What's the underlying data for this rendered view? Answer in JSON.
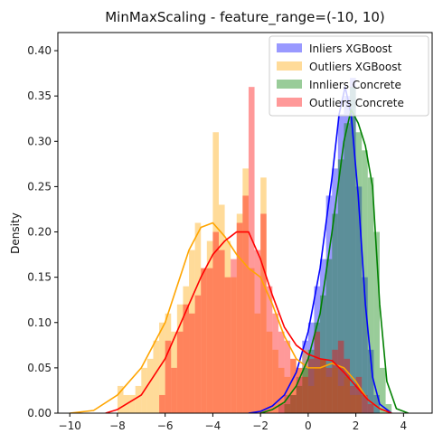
{
  "chart_data": {
    "type": "histogram",
    "title": "MinMaxScaling - feature_range=(-10, 10)",
    "xlabel": "",
    "ylabel": "Density",
    "xlim": [
      -10.5,
      5.2
    ],
    "ylim": [
      0,
      0.42
    ],
    "xticks": [
      -10,
      -8,
      -6,
      -4,
      -2,
      0,
      2,
      4
    ],
    "yticks": [
      0.0,
      0.05,
      0.1,
      0.15,
      0.2,
      0.25,
      0.3,
      0.35,
      0.4
    ],
    "ytick_labels": [
      "0.00",
      "0.05",
      "0.10",
      "0.15",
      "0.20",
      "0.25",
      "0.30",
      "0.35",
      "0.40"
    ],
    "legend_position": "top-right",
    "series": [
      {
        "name": "Inliers XGBoost",
        "hist_color": "#0000ff",
        "kde_color": "#0000ff",
        "bin_width": 0.25,
        "bins": [
          [
            -1.25,
            0.01
          ],
          [
            -1.0,
            0.02
          ],
          [
            -0.75,
            0.02
          ],
          [
            -0.5,
            0.04
          ],
          [
            -0.25,
            0.08
          ],
          [
            0.0,
            0.1
          ],
          [
            0.25,
            0.14
          ],
          [
            0.5,
            0.17
          ],
          [
            0.75,
            0.24
          ],
          [
            1.0,
            0.27
          ],
          [
            1.25,
            0.33
          ],
          [
            1.5,
            0.35
          ],
          [
            1.75,
            0.37
          ],
          [
            2.0,
            0.25
          ],
          [
            2.25,
            0.15
          ],
          [
            2.5,
            0.07
          ],
          [
            2.75,
            0.02
          ]
        ],
        "kde": [
          [
            -2.5,
            0.0
          ],
          [
            -2.0,
            0.002
          ],
          [
            -1.5,
            0.008
          ],
          [
            -1.0,
            0.02
          ],
          [
            -0.5,
            0.045
          ],
          [
            0.0,
            0.09
          ],
          [
            0.5,
            0.16
          ],
          [
            1.0,
            0.26
          ],
          [
            1.3,
            0.33
          ],
          [
            1.55,
            0.36
          ],
          [
            1.8,
            0.33
          ],
          [
            2.1,
            0.24
          ],
          [
            2.4,
            0.12
          ],
          [
            2.7,
            0.04
          ],
          [
            3.0,
            0.01
          ],
          [
            3.5,
            0.0
          ]
        ]
      },
      {
        "name": "Outliers XGBoost",
        "hist_color": "#ffa500",
        "kde_color": "#ffa500",
        "bin_width": 0.25,
        "bins": [
          [
            -8.0,
            0.03
          ],
          [
            -7.75,
            0.02
          ],
          [
            -7.5,
            0.02
          ],
          [
            -7.25,
            0.03
          ],
          [
            -7.0,
            0.05
          ],
          [
            -6.75,
            0.06
          ],
          [
            -6.5,
            0.08
          ],
          [
            -6.25,
            0.1
          ],
          [
            -6.0,
            0.11
          ],
          [
            -5.75,
            0.09
          ],
          [
            -5.5,
            0.12
          ],
          [
            -5.25,
            0.14
          ],
          [
            -5.0,
            0.18
          ],
          [
            -4.75,
            0.21
          ],
          [
            -4.5,
            0.16
          ],
          [
            -4.25,
            0.19
          ],
          [
            -4.0,
            0.31
          ],
          [
            -3.75,
            0.23
          ],
          [
            -3.5,
            0.19
          ],
          [
            -3.25,
            0.15
          ],
          [
            -3.0,
            0.22
          ],
          [
            -2.75,
            0.27
          ],
          [
            -2.5,
            0.16
          ],
          [
            -2.25,
            0.11
          ],
          [
            -2.0,
            0.26
          ],
          [
            -1.75,
            0.09
          ],
          [
            -1.5,
            0.07
          ],
          [
            -1.25,
            0.05
          ],
          [
            -1.0,
            0.04
          ],
          [
            -0.75,
            0.06
          ],
          [
            -0.5,
            0.05
          ],
          [
            -0.25,
            0.07
          ],
          [
            0.0,
            0.03
          ],
          [
            0.25,
            0.05
          ],
          [
            0.5,
            0.06
          ],
          [
            0.75,
            0.04
          ],
          [
            1.0,
            0.05
          ],
          [
            1.25,
            0.03
          ],
          [
            1.5,
            0.04
          ],
          [
            1.75,
            0.02
          ],
          [
            2.0,
            0.02
          ]
        ],
        "kde": [
          [
            -10.0,
            0.0
          ],
          [
            -9.0,
            0.003
          ],
          [
            -8.0,
            0.02
          ],
          [
            -7.0,
            0.05
          ],
          [
            -6.0,
            0.1
          ],
          [
            -5.5,
            0.14
          ],
          [
            -5.0,
            0.18
          ],
          [
            -4.5,
            0.205
          ],
          [
            -4.0,
            0.21
          ],
          [
            -3.5,
            0.195
          ],
          [
            -3.0,
            0.175
          ],
          [
            -2.5,
            0.16
          ],
          [
            -2.0,
            0.15
          ],
          [
            -1.5,
            0.12
          ],
          [
            -1.0,
            0.085
          ],
          [
            -0.5,
            0.06
          ],
          [
            0.0,
            0.05
          ],
          [
            0.5,
            0.05
          ],
          [
            1.0,
            0.055
          ],
          [
            1.5,
            0.05
          ],
          [
            2.0,
            0.035
          ],
          [
            2.5,
            0.015
          ],
          [
            3.0,
            0.005
          ],
          [
            3.5,
            0.0
          ]
        ]
      },
      {
        "name": "Innliers Concrete",
        "hist_color": "#008000",
        "kde_color": "#008000",
        "bin_width": 0.25,
        "bins": [
          [
            -1.0,
            0.01
          ],
          [
            -0.75,
            0.02
          ],
          [
            -0.5,
            0.03
          ],
          [
            -0.25,
            0.05
          ],
          [
            0.0,
            0.07
          ],
          [
            0.25,
            0.1
          ],
          [
            0.5,
            0.13
          ],
          [
            0.75,
            0.17
          ],
          [
            1.0,
            0.22
          ],
          [
            1.25,
            0.28
          ],
          [
            1.5,
            0.32
          ],
          [
            1.75,
            0.36
          ],
          [
            2.0,
            0.31
          ],
          [
            2.25,
            0.29
          ],
          [
            2.5,
            0.26
          ],
          [
            2.75,
            0.2
          ],
          [
            3.0,
            0.05
          ],
          [
            3.25,
            0.01
          ]
        ],
        "kde": [
          [
            -2.0,
            0.0
          ],
          [
            -1.5,
            0.004
          ],
          [
            -1.0,
            0.012
          ],
          [
            -0.5,
            0.03
          ],
          [
            0.0,
            0.06
          ],
          [
            0.5,
            0.11
          ],
          [
            1.0,
            0.2
          ],
          [
            1.5,
            0.3
          ],
          [
            1.8,
            0.335
          ],
          [
            2.1,
            0.32
          ],
          [
            2.4,
            0.295
          ],
          [
            2.7,
            0.25
          ],
          [
            3.0,
            0.12
          ],
          [
            3.3,
            0.035
          ],
          [
            3.7,
            0.005
          ],
          [
            4.2,
            0.0
          ]
        ]
      },
      {
        "name": "Outliers Concrete",
        "hist_color": "#ff0000",
        "kde_color": "#ff0000",
        "bin_width": 0.25,
        "bins": [
          [
            -6.25,
            0.02
          ],
          [
            -6.0,
            0.08
          ],
          [
            -5.75,
            0.05
          ],
          [
            -5.5,
            0.09
          ],
          [
            -5.25,
            0.12
          ],
          [
            -5.0,
            0.11
          ],
          [
            -4.75,
            0.13
          ],
          [
            -4.5,
            0.16
          ],
          [
            -4.25,
            0.16
          ],
          [
            -4.0,
            0.2
          ],
          [
            -3.75,
            0.18
          ],
          [
            -3.5,
            0.15
          ],
          [
            -3.25,
            0.17
          ],
          [
            -3.0,
            0.21
          ],
          [
            -2.75,
            0.24
          ],
          [
            -2.5,
            0.36
          ],
          [
            -2.25,
            0.18
          ],
          [
            -2.0,
            0.22
          ],
          [
            -1.75,
            0.14
          ],
          [
            -1.5,
            0.11
          ],
          [
            -1.25,
            0.09
          ],
          [
            -1.0,
            0.08
          ],
          [
            -0.75,
            0.06
          ],
          [
            -0.5,
            0.05
          ],
          [
            -0.25,
            0.04
          ],
          [
            0.0,
            0.06
          ],
          [
            0.25,
            0.09
          ],
          [
            0.5,
            0.06
          ],
          [
            0.75,
            0.05
          ],
          [
            1.0,
            0.07
          ],
          [
            1.25,
            0.08
          ],
          [
            1.5,
            0.06
          ],
          [
            1.75,
            0.03
          ],
          [
            2.0,
            0.04
          ],
          [
            2.25,
            0.02
          ],
          [
            2.5,
            0.01
          ]
        ],
        "kde": [
          [
            -8.5,
            0.0
          ],
          [
            -8.0,
            0.004
          ],
          [
            -7.0,
            0.02
          ],
          [
            -6.0,
            0.06
          ],
          [
            -5.0,
            0.12
          ],
          [
            -4.5,
            0.15
          ],
          [
            -4.0,
            0.175
          ],
          [
            -3.5,
            0.19
          ],
          [
            -3.0,
            0.2
          ],
          [
            -2.5,
            0.2
          ],
          [
            -2.0,
            0.17
          ],
          [
            -1.5,
            0.13
          ],
          [
            -1.0,
            0.095
          ],
          [
            -0.5,
            0.075
          ],
          [
            0.0,
            0.065
          ],
          [
            0.5,
            0.06
          ],
          [
            1.0,
            0.058
          ],
          [
            1.5,
            0.045
          ],
          [
            2.0,
            0.03
          ],
          [
            2.5,
            0.015
          ],
          [
            3.0,
            0.005
          ],
          [
            3.5,
            0.0
          ]
        ]
      }
    ]
  }
}
